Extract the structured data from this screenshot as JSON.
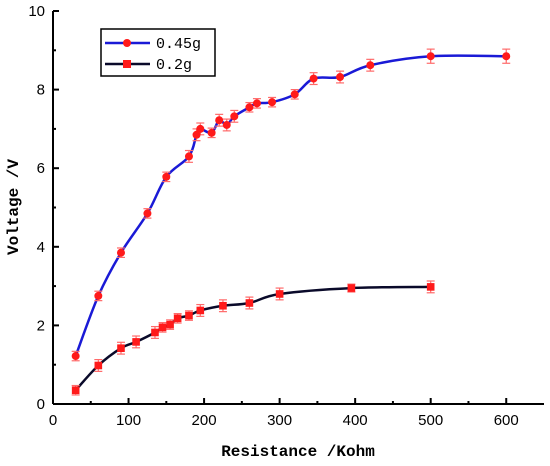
{
  "chart_data": {
    "type": "line",
    "title": "",
    "xlabel": "Resistance /Kohm",
    "ylabel": "Voltage /V",
    "xlim": [
      0,
      650
    ],
    "ylim": [
      0,
      10
    ],
    "xticks": [
      0,
      100,
      200,
      300,
      400,
      500,
      600
    ],
    "yticks": [
      0,
      2,
      4,
      6,
      8,
      10
    ],
    "grid": false,
    "legend_position": "top-left",
    "series": [
      {
        "name": "0.45g",
        "color": "#1a1ad6",
        "marker_color": "#ff1a1a",
        "errorbar_color": "#ff6a6a",
        "marker": "circle",
        "x": [
          30,
          60,
          90,
          125,
          150,
          180,
          190,
          195,
          210,
          220,
          230,
          240,
          260,
          270,
          290,
          320,
          345,
          380,
          420,
          500,
          600
        ],
        "y": [
          1.22,
          2.75,
          3.85,
          4.85,
          5.78,
          6.3,
          6.85,
          7.0,
          6.9,
          7.22,
          7.1,
          7.32,
          7.55,
          7.65,
          7.68,
          7.88,
          8.28,
          8.32,
          8.62,
          8.85,
          8.85
        ],
        "err": [
          0.12,
          0.12,
          0.12,
          0.12,
          0.12,
          0.15,
          0.15,
          0.15,
          0.12,
          0.15,
          0.15,
          0.15,
          0.12,
          0.12,
          0.12,
          0.12,
          0.15,
          0.15,
          0.15,
          0.18,
          0.18
        ]
      },
      {
        "name": "0.2g",
        "color": "#0a0a2a",
        "marker_color": "#ff1a1a",
        "errorbar_color": "#ff6a6a",
        "marker": "square",
        "x": [
          30,
          60,
          90,
          110,
          135,
          145,
          155,
          165,
          180,
          195,
          225,
          260,
          300,
          395,
          500
        ],
        "y": [
          0.35,
          0.98,
          1.42,
          1.58,
          1.82,
          1.95,
          2.02,
          2.18,
          2.25,
          2.38,
          2.5,
          2.57,
          2.8,
          2.95,
          2.98
        ],
        "err": [
          0.12,
          0.15,
          0.15,
          0.15,
          0.15,
          0.12,
          0.12,
          0.12,
          0.12,
          0.15,
          0.15,
          0.15,
          0.15,
          0.1,
          0.15
        ]
      }
    ]
  }
}
